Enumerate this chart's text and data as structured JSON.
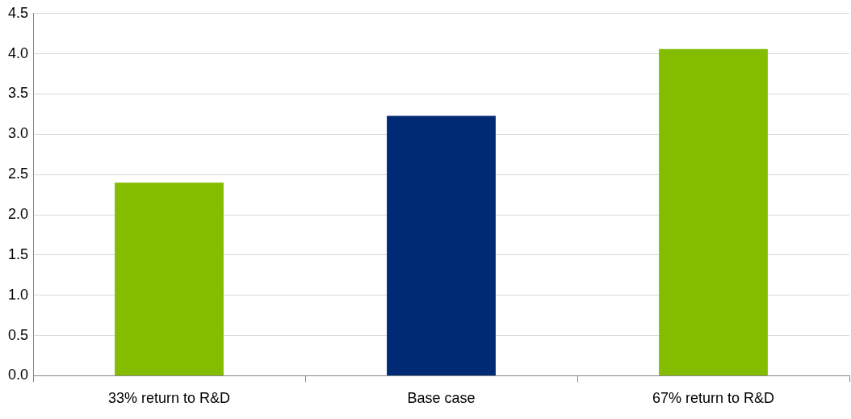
{
  "chart_data": {
    "type": "bar",
    "categories": [
      "33% return to R&D",
      "Base case",
      "67% return to R&D"
    ],
    "values": [
      2.4,
      3.23,
      4.06
    ],
    "colors": [
      "#84bc00",
      "#002a74",
      "#84bc00"
    ],
    "ylim": [
      0,
      4.5
    ],
    "yticks": [
      {
        "value": 0,
        "label": "0.0"
      },
      {
        "value": 0.5,
        "label": "0.5"
      },
      {
        "value": 1,
        "label": "1.0"
      },
      {
        "value": 1.5,
        "label": "1.5"
      },
      {
        "value": 2,
        "label": "2.0"
      },
      {
        "value": 2.5,
        "label": "2.5"
      },
      {
        "value": 3,
        "label": "3.0"
      },
      {
        "value": 3.5,
        "label": "3.5"
      },
      {
        "value": 4,
        "label": "4.0"
      },
      {
        "value": 4.5,
        "label": "4.5"
      }
    ],
    "grid": "y",
    "legend": false
  }
}
